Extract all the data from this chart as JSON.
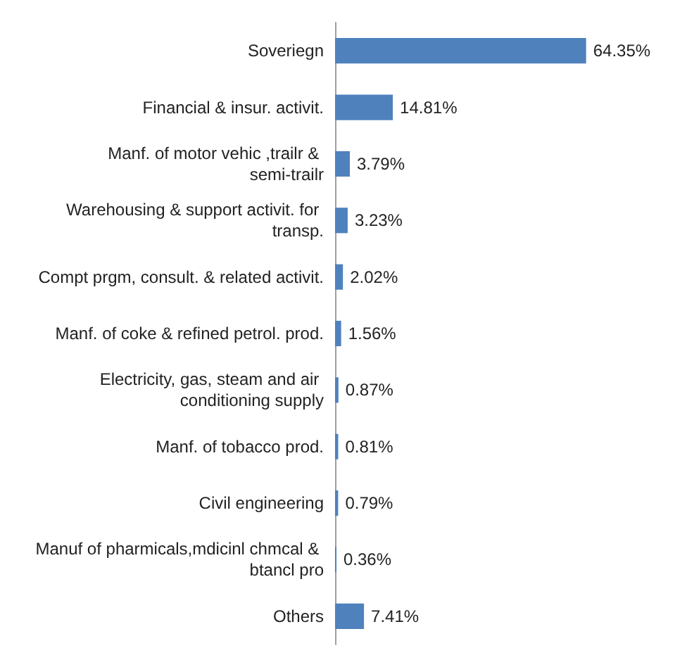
{
  "chart_data": {
    "type": "bar",
    "orientation": "horizontal",
    "categories": [
      "Soveriegn",
      "Financial & insur. activit.",
      "Manf. of motor vehic ,trailr & semi-trailr",
      "Warehousing & support activit. for transp.",
      "Compt prgm, consult. & related activit.",
      "Manf. of coke & refined petrol. prod.",
      "Electricity, gas, steam and air conditioning supply",
      "Manf. of tobacco prod.",
      "Civil engineering",
      "Manuf of pharmicals,mdicinl chmcal & btancl pro",
      "Others"
    ],
    "values": [
      64.35,
      14.81,
      3.79,
      3.23,
      2.02,
      1.56,
      0.87,
      0.81,
      0.79,
      0.36,
      7.41
    ],
    "value_labels": [
      "64.35%",
      "14.81%",
      "3.79%",
      "3.23%",
      "2.02%",
      "1.56%",
      "0.87%",
      "0.81%",
      "0.79%",
      "0.36%",
      "7.41%"
    ],
    "color": "#4f81bd"
  }
}
